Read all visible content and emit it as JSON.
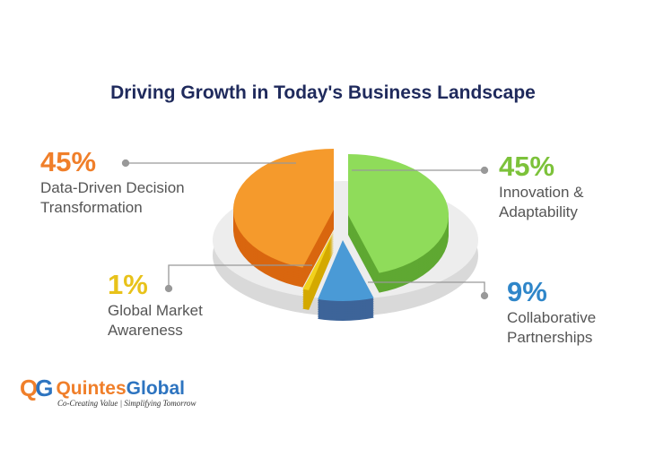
{
  "chart_data": {
    "type": "pie",
    "title": "Driving Growth in Today's Business Landscape",
    "slices": [
      {
        "label": "Innovation & Adaptability",
        "line1": "Innovation &",
        "line2": "Adaptability",
        "value": 45,
        "pct_label": "45%",
        "color": "#8fdc5a",
        "side": "#5fa832"
      },
      {
        "label": "Collaborative Partnerships",
        "line1": "Collaborative",
        "line2": "Partnerships",
        "value": 9,
        "pct_label": "9%",
        "color": "#4a9ad6",
        "side": "#3d6499"
      },
      {
        "label": "Global Market Awareness",
        "line1": "Global Market",
        "line2": "Awareness",
        "value": 1,
        "pct_label": "1%",
        "color": "#f2d11c",
        "side": "#d4a900"
      },
      {
        "label": "Data-Driven Decision Transformation",
        "line1": "Data-Driven Decision",
        "line2": "Transformation",
        "value": 45,
        "pct_label": "45%",
        "color": "#f59a2c",
        "side": "#d9660f"
      }
    ],
    "pct_colors": [
      "#7cc23a",
      "#2f86c9",
      "#e8c21a",
      "#f07f2a"
    ]
  },
  "logo": {
    "q": "Q",
    "g": "G",
    "name_a": "Quintes",
    "name_b": "Global",
    "tagline": "Co-Creating Value | Simplifying Tomorrow"
  }
}
